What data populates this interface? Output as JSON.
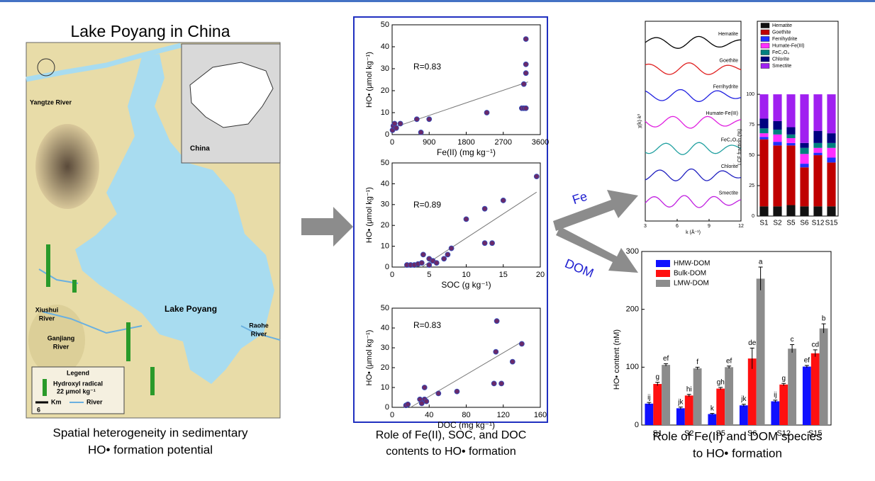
{
  "title": "Lake Poyang in China",
  "map": {
    "yangtze": "Yangtze River",
    "china": "China",
    "lake": "Lake Poyang",
    "xiushui": [
      "Xiushui",
      "River"
    ],
    "ganjiang": [
      "Ganjiang",
      "River"
    ],
    "raohe": [
      "Raohe",
      "River"
    ],
    "legend": {
      "title": "Legend",
      "item": [
        "Hydroxyl radical",
        "22 μmol kg⁻¹"
      ],
      "km": "Km",
      "river": "River",
      "scale": "6"
    },
    "caption": [
      "Spatial heterogeneity in sedimentary",
      "HO• formation potential"
    ]
  },
  "middle_caption": [
    "Role of Fe(II), SOC, and DOC",
    "contents to HO• formation"
  ],
  "arrows": {
    "fe": "Fe",
    "dom": "DOM"
  },
  "right_caption": [
    "Role of Fe(II) and DOM species",
    "to HO• formation"
  ],
  "chart_data": [
    {
      "type": "scatter",
      "x_label": "Fe(II) (mg kg⁻¹)",
      "y_label": "HO• (μmol kg⁻¹)",
      "annotation": "R=0.83",
      "color": "#6a2a6a",
      "x": [
        10,
        30,
        60,
        100,
        200,
        600,
        700,
        900,
        2300,
        3150,
        3200,
        3250,
        3200,
        3250,
        3250,
        3250
      ],
      "values": [
        2,
        4,
        5,
        3,
        5,
        7,
        1,
        7,
        10,
        12,
        12,
        12,
        23,
        28,
        32,
        43.5
      ],
      "trend_x": [
        0,
        3300
      ],
      "trend_y": [
        3,
        24
      ],
      "xlim": [
        0,
        3600
      ],
      "xticks": [
        0,
        900,
        1800,
        2700,
        3600
      ],
      "ylim": [
        0,
        50
      ],
      "yticks": [
        0,
        10,
        20,
        30,
        40,
        50
      ]
    },
    {
      "type": "scatter",
      "x_label": "SOC (g kg⁻¹)",
      "y_label": "HO• (μmol kg⁻¹)",
      "annotation": "R=0.89",
      "color": "#6a2a6a",
      "x": [
        2,
        2.5,
        3,
        3.5,
        4,
        4.2,
        5,
        5,
        5.5,
        6,
        7,
        7.5,
        8,
        10,
        12.5,
        12.5,
        13.5,
        15,
        19.5
      ],
      "values": [
        1,
        1,
        1,
        1.5,
        2,
        6,
        1,
        4,
        3,
        2,
        4,
        6,
        9,
        23,
        28,
        11.5,
        11.5,
        32,
        43.5
      ],
      "trend_x": [
        4,
        19.5
      ],
      "trend_y": [
        0,
        36
      ],
      "xlim": [
        0,
        20
      ],
      "xticks": [
        0,
        5,
        10,
        15,
        20
      ],
      "ylim": [
        0,
        50
      ],
      "yticks": [
        0,
        10,
        20,
        30,
        40,
        50
      ]
    },
    {
      "type": "scatter",
      "x_label": "DOC (mg kg⁻¹)",
      "y_label": "HO• (μmol kg⁻¹)",
      "annotation": "R=0.83",
      "color": "#6a2a6a",
      "x": [
        15,
        17,
        30,
        32,
        35,
        35,
        37,
        50,
        70,
        110,
        112,
        113,
        118,
        130,
        140
      ],
      "values": [
        1,
        1.5,
        4,
        2,
        4,
        10,
        3,
        7,
        8,
        12,
        28,
        43.5,
        12,
        23,
        32
      ],
      "trend_x": [
        20,
        140
      ],
      "trend_y": [
        0,
        33
      ],
      "xlim": [
        0,
        160
      ],
      "xticks": [
        0,
        40,
        80,
        120,
        160
      ],
      "ylim": [
        0,
        50
      ],
      "yticks": [
        0,
        10,
        20,
        30,
        40,
        50
      ]
    },
    {
      "type": "spectra",
      "labels": [
        "Hematite",
        "Goethite",
        "Ferrihydrite",
        "Humate-Fe(III)",
        "FeC₂O₄",
        "Chlorite",
        "Smectite"
      ],
      "colors": [
        "#000000",
        "#e02020",
        "#2020e0",
        "#e020e0",
        "#20a0a0",
        "#2020c0",
        "#c020e0"
      ],
      "x_label": "k (Å⁻¹)",
      "y_label": "χ(k)·k³",
      "xlim": [
        3,
        12
      ],
      "xticks": [
        3,
        6,
        9,
        12
      ]
    },
    {
      "type": "stacked_bar",
      "y_label": "LCF fraction (%)",
      "categories": [
        "S1",
        "S2",
        "S5",
        "S6",
        "S12",
        "S15"
      ],
      "ylim": [
        0,
        160
      ],
      "yticks": [
        0,
        25,
        50,
        75,
        100
      ],
      "series": [
        {
          "name": "Hematite",
          "color": "#111111",
          "values": [
            8,
            8,
            9,
            8,
            8,
            8
          ]
        },
        {
          "name": "Goethite",
          "color": "#c00000",
          "values": [
            55,
            50,
            49,
            32,
            42,
            36
          ]
        },
        {
          "name": "Ferrihydrite",
          "color": "#2030ff",
          "values": [
            2,
            3,
            2,
            3,
            2,
            4
          ]
        },
        {
          "name": "Humate-Fe(III)",
          "color": "#ff30ff",
          "values": [
            3,
            6,
            4,
            8,
            4,
            8
          ]
        },
        {
          "name": "FeC₂O₄",
          "color": "#008080",
          "values": [
            4,
            4,
            3,
            5,
            4,
            4
          ]
        },
        {
          "name": "Chlorite",
          "color": "#000080",
          "values": [
            8,
            7,
            6,
            4,
            10,
            8
          ]
        },
        {
          "name": "Smectite",
          "color": "#a020f0",
          "values": [
            20,
            22,
            27,
            40,
            30,
            32
          ]
        }
      ]
    },
    {
      "type": "grouped_bar",
      "y_label": "HO• content (nM)",
      "categories": [
        "S1",
        "S2",
        "S5",
        "S6",
        "S12",
        "S15"
      ],
      "ylim": [
        0,
        300
      ],
      "yticks": [
        0,
        100,
        200,
        300
      ],
      "series": [
        {
          "name": "HMW-DOM",
          "color": "#1010ff",
          "values": [
            37,
            29,
            19,
            34,
            41,
            101
          ],
          "errors": [
            2,
            2,
            1,
            2,
            2,
            2
          ],
          "letters": [
            "ij",
            "jk",
            "k",
            "jk",
            "ij",
            "ef"
          ]
        },
        {
          "name": "Bulk-DOM",
          "color": "#ff1010",
          "values": [
            71,
            51,
            63,
            115,
            70,
            124
          ],
          "errors": [
            3,
            2,
            2,
            18,
            2,
            6
          ],
          "letters": [
            "g",
            "hi",
            "gh",
            "de",
            "g",
            "cd"
          ]
        },
        {
          "name": "LMW-DOM",
          "color": "#8c8c8c",
          "values": [
            104,
            98,
            100,
            253,
            132,
            167
          ],
          "errors": [
            2,
            2,
            2,
            20,
            7,
            8
          ],
          "letters": [
            "ef",
            "f",
            "ef",
            "a",
            "c",
            "b"
          ]
        }
      ]
    }
  ]
}
